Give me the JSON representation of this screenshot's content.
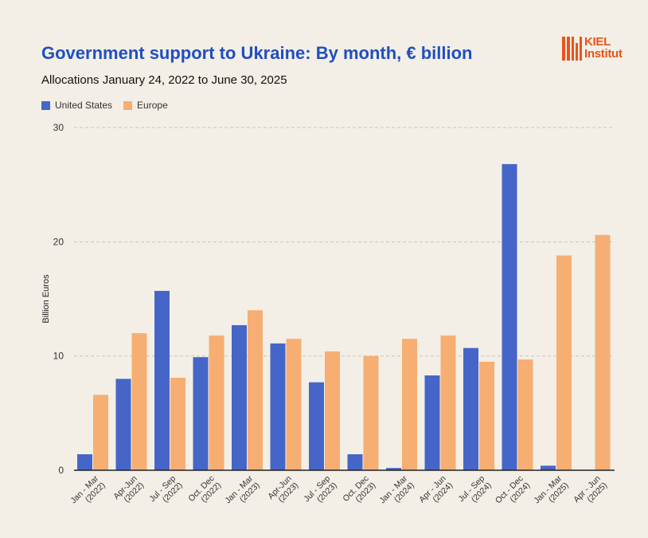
{
  "title": "Government support to Ukraine: By month, € billion",
  "subtitle": "Allocations January 24, 2022 to June 30, 2025",
  "logo": {
    "line1": "KIEL",
    "line2": "Institut",
    "color": "#e8541c"
  },
  "colors": {
    "us": "#4566c8",
    "europe": "#f7ae72",
    "grid": "#c9c4b8",
    "background": "#f3efe6"
  },
  "chart_data": {
    "type": "bar",
    "ylabel": "Billion Euros",
    "ylim": [
      0,
      30
    ],
    "yticks": [
      0,
      10,
      20,
      30
    ],
    "grid": true,
    "legend_position": "top-left",
    "categories": [
      [
        "Jan - Mar",
        "(2022)"
      ],
      [
        "Apr-Jun",
        "(2022)"
      ],
      [
        "Jul - Sep",
        "(2022)"
      ],
      [
        "Oct. Dec",
        "(2022)"
      ],
      [
        "Jan - Mar",
        "(2023)"
      ],
      [
        "Apr-Jun",
        "(2023)"
      ],
      [
        "Jul - Sep",
        "(2023)"
      ],
      [
        "Oct. Dec",
        "(2023)"
      ],
      [
        "Jan - Mar",
        "(2024)"
      ],
      [
        "Apr - Jun",
        "(2024)"
      ],
      [
        "Jul - Sep",
        "(2024)"
      ],
      [
        "Oct - Dec",
        "(2024)"
      ],
      [
        "Jan - Mar",
        "(2025)"
      ],
      [
        "Apr - Jun",
        "(2025)"
      ]
    ],
    "series": [
      {
        "name": "United States",
        "values": [
          1.4,
          8.0,
          15.7,
          9.9,
          12.7,
          11.1,
          7.7,
          1.4,
          0.2,
          8.3,
          10.7,
          26.8,
          0.4,
          0.0
        ]
      },
      {
        "name": "Europe",
        "values": [
          6.6,
          12.0,
          8.1,
          11.8,
          14.0,
          11.5,
          10.4,
          10.0,
          11.5,
          11.8,
          9.5,
          9.7,
          18.8,
          20.6
        ]
      }
    ]
  }
}
